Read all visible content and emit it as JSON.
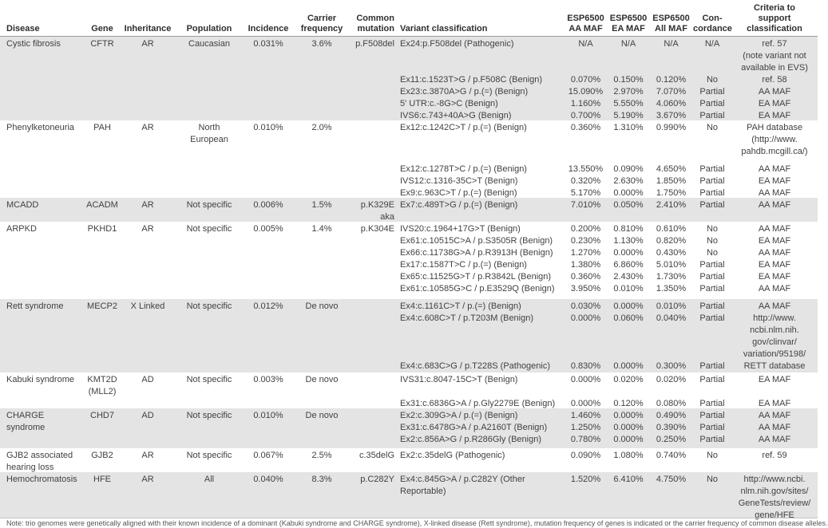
{
  "header": {
    "columns": [
      {
        "key": "disease",
        "label": "Disease"
      },
      {
        "key": "gene",
        "label": "Gene"
      },
      {
        "key": "inheritance",
        "label": "Inheritance"
      },
      {
        "key": "population",
        "label": "Population"
      },
      {
        "key": "incidence",
        "label": "Incidence"
      },
      {
        "key": "carrier",
        "label": "Carrier\nfrequency"
      },
      {
        "key": "mutation",
        "label": "Common\nmutation"
      },
      {
        "key": "variant",
        "label": "Variant classification"
      },
      {
        "key": "aa",
        "label": "ESP6500\nAA MAF"
      },
      {
        "key": "ea",
        "label": "ESP6500\nEA MAF"
      },
      {
        "key": "all",
        "label": "ESP6500\nAll MAF"
      },
      {
        "key": "concordance",
        "label": "Con-\ncordance"
      },
      {
        "key": "criteria",
        "label": "Criteria to\nsupport\nclassification"
      }
    ]
  },
  "groups": [
    {
      "id": "cystic-fibrosis",
      "disease": "Cystic fibrosis",
      "gene": "CFTR",
      "inheritance": "AR",
      "population": "Caucasian",
      "incidence": "0.031%",
      "carrier": "3.6%",
      "mutation": "p.F508del",
      "variants": [
        {
          "variant": "Ex24:p.F508del (Pathogenic)",
          "aa": "N/A",
          "ea": "N/A",
          "all": "N/A",
          "concordance": "N/A",
          "criteria": "ref. 57\n(note variant not\navailable in EVS)"
        },
        {
          "variant": "Ex11:c.1523T>G / p.F508C (Benign)",
          "aa": "0.070%",
          "ea": "0.150%",
          "all": "0.120%",
          "concordance": "No",
          "criteria": "ref. 58"
        },
        {
          "variant": "Ex23:c.3870A>G / p.(=) (Benign)",
          "aa": "15.090%",
          "ea": "2.970%",
          "all": "7.070%",
          "concordance": "Partial",
          "criteria": "AA MAF"
        },
        {
          "variant": "5' UTR:c.-8G>C (Benign)",
          "aa": "1.160%",
          "ea": "5.550%",
          "all": "4.060%",
          "concordance": "Partial",
          "criteria": "EA MAF"
        },
        {
          "variant": "IVS6:c.743+40A>G (Benign)",
          "aa": "0.700%",
          "ea": "5.190%",
          "all": "3.670%",
          "concordance": "Partial",
          "criteria": "EA MAF"
        }
      ]
    },
    {
      "id": "phenylketoneuria",
      "disease": "Phenylketoneuria",
      "gene": "PAH",
      "inheritance": "AR",
      "population": "North\nEuropean",
      "incidence": "0.010%",
      "carrier": "2.0%",
      "mutation": "",
      "variants": [
        {
          "variant": "Ex12:c.1242C>T / p.(=) (Benign)",
          "aa": "0.360%",
          "ea": "1.310%",
          "all": "0.990%",
          "concordance": "No",
          "criteria": "PAH database\n(http://www.\npahdb.mcgill.ca/)"
        },
        {
          "variant": "Ex12:c.1278T>C / p.(=) (Benign)",
          "aa": "13.550%",
          "ea": "0.090%",
          "all": "4.650%",
          "concordance": "Partial",
          "criteria": "AA MAF"
        },
        {
          "variant": "IVS12:c.1316-35C>T (Benign)",
          "aa": "0.320%",
          "ea": "2.630%",
          "all": "1.850%",
          "concordance": "Partial",
          "criteria": "EA MAF"
        },
        {
          "variant": "Ex9:c.963C>T / p.(=) (Benign)",
          "aa": "5.170%",
          "ea": "0.000%",
          "all": "1.750%",
          "concordance": "Partial",
          "criteria": "AA MAF"
        }
      ]
    },
    {
      "id": "mcadd",
      "disease": "MCADD",
      "gene": "ACADM",
      "inheritance": "AR",
      "population": "Not specific",
      "incidence": "0.006%",
      "carrier": "1.5%",
      "mutation": "p.K329E\naka p.K304E",
      "variants": [
        {
          "variant": "Ex7:c.489T>G / p.(=) (Benign)",
          "aa": "7.010%",
          "ea": "0.050%",
          "all": "2.410%",
          "concordance": "Partial",
          "criteria": "AA MAF"
        }
      ]
    },
    {
      "id": "arpkd",
      "disease": "ARPKD",
      "gene": "PKHD1",
      "inheritance": "AR",
      "population": "Not specific",
      "incidence": "0.005%",
      "carrier": "1.4%",
      "mutation": "",
      "variants": [
        {
          "variant": "IVS20:c.1964+17G>T (Benign)",
          "aa": "0.200%",
          "ea": "0.810%",
          "all": "0.610%",
          "concordance": "No",
          "criteria": "AA MAF"
        },
        {
          "variant": "Ex61:c.10515C>A / p.S3505R (Benign)",
          "aa": "0.230%",
          "ea": "1.130%",
          "all": "0.820%",
          "concordance": "No",
          "criteria": "EA MAF"
        },
        {
          "variant": "Ex66:c.11738G>A / p.R3913H (Benign)",
          "aa": "1.270%",
          "ea": "0.000%",
          "all": "0.430%",
          "concordance": "No",
          "criteria": "AA MAF"
        },
        {
          "variant": "Ex17:c.1587T>C / p.(=) (Benign)",
          "aa": "1.380%",
          "ea": "6.860%",
          "all": "5.010%",
          "concordance": "Partial",
          "criteria": "EA MAF"
        },
        {
          "variant": "Ex65:c.11525G>T / p.R3842L (Benign)",
          "aa": "0.360%",
          "ea": "2.430%",
          "all": "1.730%",
          "concordance": "Partial",
          "criteria": "EA MAF"
        },
        {
          "variant": "Ex61:c.10585G>C / p.E3529Q (Benign)",
          "aa": "3.950%",
          "ea": "0.010%",
          "all": "1.350%",
          "concordance": "Partial",
          "criteria": "AA MAF"
        }
      ]
    },
    {
      "id": "rett",
      "disease": "Rett syndrome",
      "gene": "MECP2",
      "inheritance": "X Linked",
      "population": "Not specific",
      "incidence": "0.012%",
      "carrier": "De novo",
      "mutation": "",
      "variants": [
        {
          "variant": "Ex4:c.1161C>T / p.(=) (Benign)",
          "aa": "0.030%",
          "ea": "0.000%",
          "all": "0.010%",
          "concordance": "Partial",
          "criteria": "AA MAF"
        },
        {
          "variant": "Ex4:c.608C>T / p.T203M (Benign)",
          "aa": "0.000%",
          "ea": "0.060%",
          "all": "0.040%",
          "concordance": "Partial",
          "criteria": "http://www.\nncbi.nlm.nih.\ngov/clinvar/\nvariation/95198/"
        },
        {
          "variant": "Ex4:c.683C>G / p.T228S (Pathogenic)",
          "aa": "0.830%",
          "ea": "0.000%",
          "all": "0.300%",
          "concordance": "Partial",
          "criteria": "RETT database"
        }
      ]
    },
    {
      "id": "kabuki",
      "disease": "Kabuki syndrome",
      "gene": "KMT2D\n(MLL2)",
      "inheritance": "AD",
      "population": "Not specific",
      "incidence": "0.003%",
      "carrier": "De novo",
      "mutation": "",
      "variants": [
        {
          "variant": "IVS31:c.8047-15C>T (Benign)",
          "aa": "0.000%",
          "ea": "0.020%",
          "all": "0.020%",
          "concordance": "Partial",
          "criteria": "EA MAF"
        },
        {
          "variant": "Ex31:c.6836G>A / p.Gly2279E (Benign)",
          "aa": "0.000%",
          "ea": "0.120%",
          "all": "0.080%",
          "concordance": "Partial",
          "criteria": "EA MAF"
        }
      ]
    },
    {
      "id": "charge",
      "disease": "CHARGE syndrome",
      "gene": "CHD7",
      "inheritance": "AD",
      "population": "Not specific",
      "incidence": "0.010%",
      "carrier": "De novo",
      "mutation": "",
      "variants": [
        {
          "variant": "Ex2:c.309G>A / p.(=) (Benign)",
          "aa": "1.460%",
          "ea": "0.000%",
          "all": "0.490%",
          "concordance": "Partial",
          "criteria": "AA MAF"
        },
        {
          "variant": "Ex31:c.6478G>A / p.A2160T (Benign)",
          "aa": "1.250%",
          "ea": "0.000%",
          "all": "0.390%",
          "concordance": "Partial",
          "criteria": "AA MAF"
        },
        {
          "variant": "Ex2:c.856A>G / p.R286Gly (Benign)",
          "aa": "0.780%",
          "ea": "0.000%",
          "all": "0.250%",
          "concordance": "Partial",
          "criteria": "AA MAF"
        }
      ]
    },
    {
      "id": "gjb2",
      "disease": "GJB2 associated\nhearing loss",
      "gene": "GJB2",
      "inheritance": "AR",
      "population": "Not specific",
      "incidence": "0.067%",
      "carrier": "2.5%",
      "mutation": "c.35delG",
      "variants": [
        {
          "variant": "Ex2:c.35delG (Pathogenic)",
          "aa": "0.090%",
          "ea": "1.080%",
          "all": "0.740%",
          "concordance": "No",
          "criteria": "ref. 59"
        }
      ]
    },
    {
      "id": "hemochromatosis",
      "disease": "Hemochromatosis",
      "gene": "HFE",
      "inheritance": "AR",
      "population": "All",
      "incidence": "0.040%",
      "carrier": "8.3%",
      "mutation": "p.C282Y",
      "variants": [
        {
          "variant": "Ex4:c.845G>A / p.C282Y (Other\nReportable)",
          "aa": "1.520%",
          "ea": "6.410%",
          "all": "4.750%",
          "concordance": "No",
          "criteria": "http://www.ncbi.\nnlm.nih.gov/sites/\nGeneTests/review/\ngene/HFE"
        }
      ]
    }
  ],
  "footnote": "Note: trio genomes were genetically aligned with their known incidence of a dominant (Kabuki syndrome and CHARGE syndrome), X-linked disease (Rett syndrome), mutation frequency of genes is indicated or the carrier frequency of common disease alleles."
}
